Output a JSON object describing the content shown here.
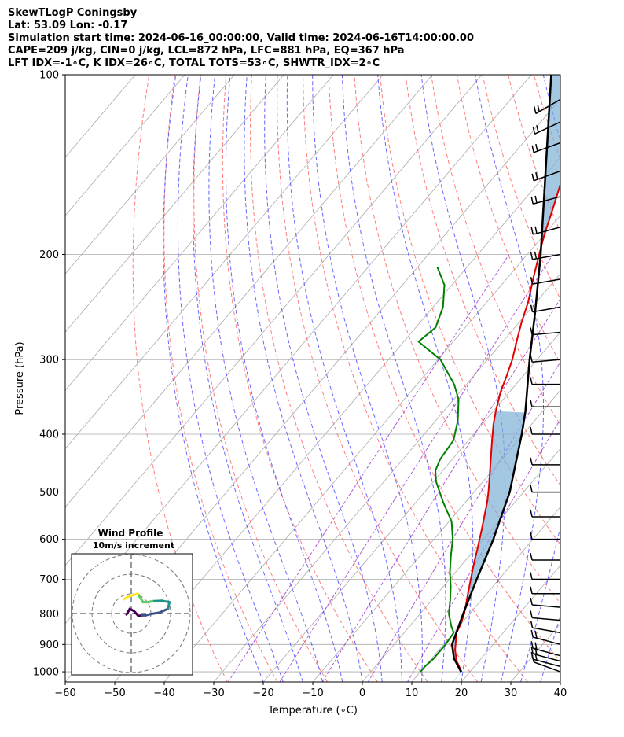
{
  "header": {
    "line1": "SkewTLogP Coningsby",
    "line2": "Lat: 53.09   Lon: -0.17",
    "line3": "Simulation start time: 2024-06-16_00:00:00, Valid time: 2024-06-16T14:00:00.00",
    "line4": "CAPE=209 j/kg, CIN=0 j/kg, LCL=872 hPa, LFC=881 hPa, EQ=367 hPa",
    "line5": "LFT IDX=-1∘C, K IDX=26∘C, TOTAL TOTS=53∘C, SHWTR_IDX=2∘C"
  },
  "colors": {
    "temperature": "#e00000",
    "dewpoint": "#008000",
    "parcel": "#000000",
    "cape_fill": "#7fb1d6",
    "cin_fill": "#f08080",
    "dry_adiabat": "#ff6666",
    "moist_adiabat": "#4d4dff",
    "mixing_ratio": "#9933cc",
    "isotherm": "#aaaaaa",
    "hodo_path": [
      "#440154",
      "#3b528b",
      "#21918c",
      "#5ec962",
      "#fde725"
    ]
  },
  "chart_data": {
    "type": "line",
    "title": "",
    "xlabel": "Temperature (∘C)",
    "ylabel": "Pressure (hPa)",
    "xlim": [
      -60,
      40
    ],
    "ylim": [
      1040,
      100
    ],
    "y_scale": "log",
    "grid": true,
    "x_ticks": [
      -60,
      -50,
      -40,
      -30,
      -20,
      -10,
      0,
      10,
      20,
      30,
      40
    ],
    "x_tick_labels": [
      "−60",
      "−50",
      "−40",
      "−30",
      "−20",
      "−10",
      "0",
      "10",
      "20",
      "30",
      "40"
    ],
    "y_ticks": [
      1000,
      900,
      800,
      700,
      600,
      500,
      400,
      300,
      200,
      100
    ],
    "y_tick_labels": [
      "1000",
      "900",
      "800",
      "700",
      "600",
      "500",
      "400",
      "300",
      "200",
      "100"
    ],
    "series": [
      {
        "key": "temperature",
        "pressure": [
          1000,
          960,
          920,
          880,
          860,
          830,
          800,
          770,
          740,
          700,
          660,
          620,
          580,
          550,
          520,
          500,
          470,
          440,
          410,
          385,
          367,
          340,
          320,
          300,
          280,
          260,
          240,
          220,
          200,
          185,
          170,
          160,
          145,
          130,
          120,
          110,
          100
        ],
        "values": [
          18.3,
          15.5,
          13.3,
          11.5,
          10.6,
          9.9,
          8.9,
          7.6,
          6.2,
          4.3,
          2.3,
          0.3,
          -1.9,
          -3.7,
          -5.6,
          -7.1,
          -9.6,
          -12.3,
          -15.2,
          -17.7,
          -19.4,
          -21.8,
          -23.3,
          -25.0,
          -27.2,
          -29.5,
          -31.7,
          -34.6,
          -37.6,
          -40.0,
          -42.3,
          -44.0,
          -46.8,
          -49.3,
          -51.5,
          -53.6,
          -56.2
        ]
      },
      {
        "key": "dewpoint",
        "pressure": [
          1000,
          980,
          950,
          900,
          860,
          840,
          800,
          760,
          720,
          680,
          640,
          600,
          560,
          520,
          480,
          460,
          440,
          410,
          380,
          350,
          330,
          300,
          280,
          265,
          245,
          225,
          210
        ],
        "values": [
          10.0,
          10.0,
          10.4,
          10.4,
          10.0,
          8.5,
          5.8,
          3.8,
          1.5,
          -1.2,
          -3.7,
          -6.2,
          -9.5,
          -14.5,
          -19.5,
          -21.5,
          -22.5,
          -23.0,
          -25.5,
          -29.0,
          -32.5,
          -39.5,
          -47.0,
          -46.0,
          -48.0,
          -51.5,
          -56.0
        ]
      },
      {
        "key": "parcel",
        "pressure": [
          1000,
          950,
          900,
          872,
          800,
          700,
          600,
          500,
          400,
          367,
          300,
          250,
          200,
          150,
          100
        ],
        "values": [
          18.2,
          14.5,
          11.7,
          10.9,
          8.7,
          5.5,
          2.0,
          -2.8,
          -10.3,
          -13.4,
          -21.5,
          -28.5,
          -37.3,
          -49.2,
          -66.0
        ]
      }
    ],
    "shading": [
      {
        "type": "CAPE",
        "between": [
          "temperature",
          "parcel"
        ],
        "from_pressure": 881,
        "to_pressure": 367
      },
      {
        "type": "CIN",
        "between": [
          "temperature",
          "parcel"
        ],
        "from_pressure": 881,
        "to_pressure": 367
      }
    ],
    "wind_barbs": {
      "pressure": [
        1000,
        980,
        960,
        940,
        900,
        860,
        820,
        780,
        740,
        700,
        650,
        600,
        550,
        500,
        450,
        400,
        360,
        330,
        300,
        270,
        245,
        220,
        200,
        180,
        160,
        145,
        130,
        120,
        110
      ],
      "speed_kt": [
        10,
        15,
        15,
        15,
        15,
        10,
        10,
        10,
        10,
        10,
        10,
        10,
        10,
        10,
        10,
        10,
        10,
        10,
        10,
        10,
        10,
        10,
        15,
        15,
        15,
        15,
        15,
        15,
        15
      ],
      "direction_deg": [
        230,
        240,
        240,
        240,
        240,
        250,
        260,
        260,
        270,
        270,
        270,
        270,
        270,
        270,
        270,
        270,
        270,
        270,
        280,
        280,
        290,
        290,
        290,
        300,
        300,
        310,
        310,
        320,
        330
      ]
    },
    "hodograph": {
      "title": "Wind Profile",
      "subtitle": "10m/s increment",
      "u": [
        -1.0,
        -0.3,
        0.6,
        1.5,
        2.3,
        3.0,
        4.2,
        6.0,
        7.8,
        8.1,
        6.5,
        4.5,
        3.5,
        2.5,
        2.0,
        1.4,
        0.4,
        -0.8,
        -1.6
      ],
      "v": [
        -0.2,
        1.0,
        0.5,
        -0.5,
        -0.4,
        -0.4,
        -0.1,
        0.2,
        1.0,
        2.4,
        2.7,
        2.6,
        2.4,
        2.4,
        3.2,
        4.2,
        3.9,
        3.5,
        3.0
      ]
    }
  }
}
